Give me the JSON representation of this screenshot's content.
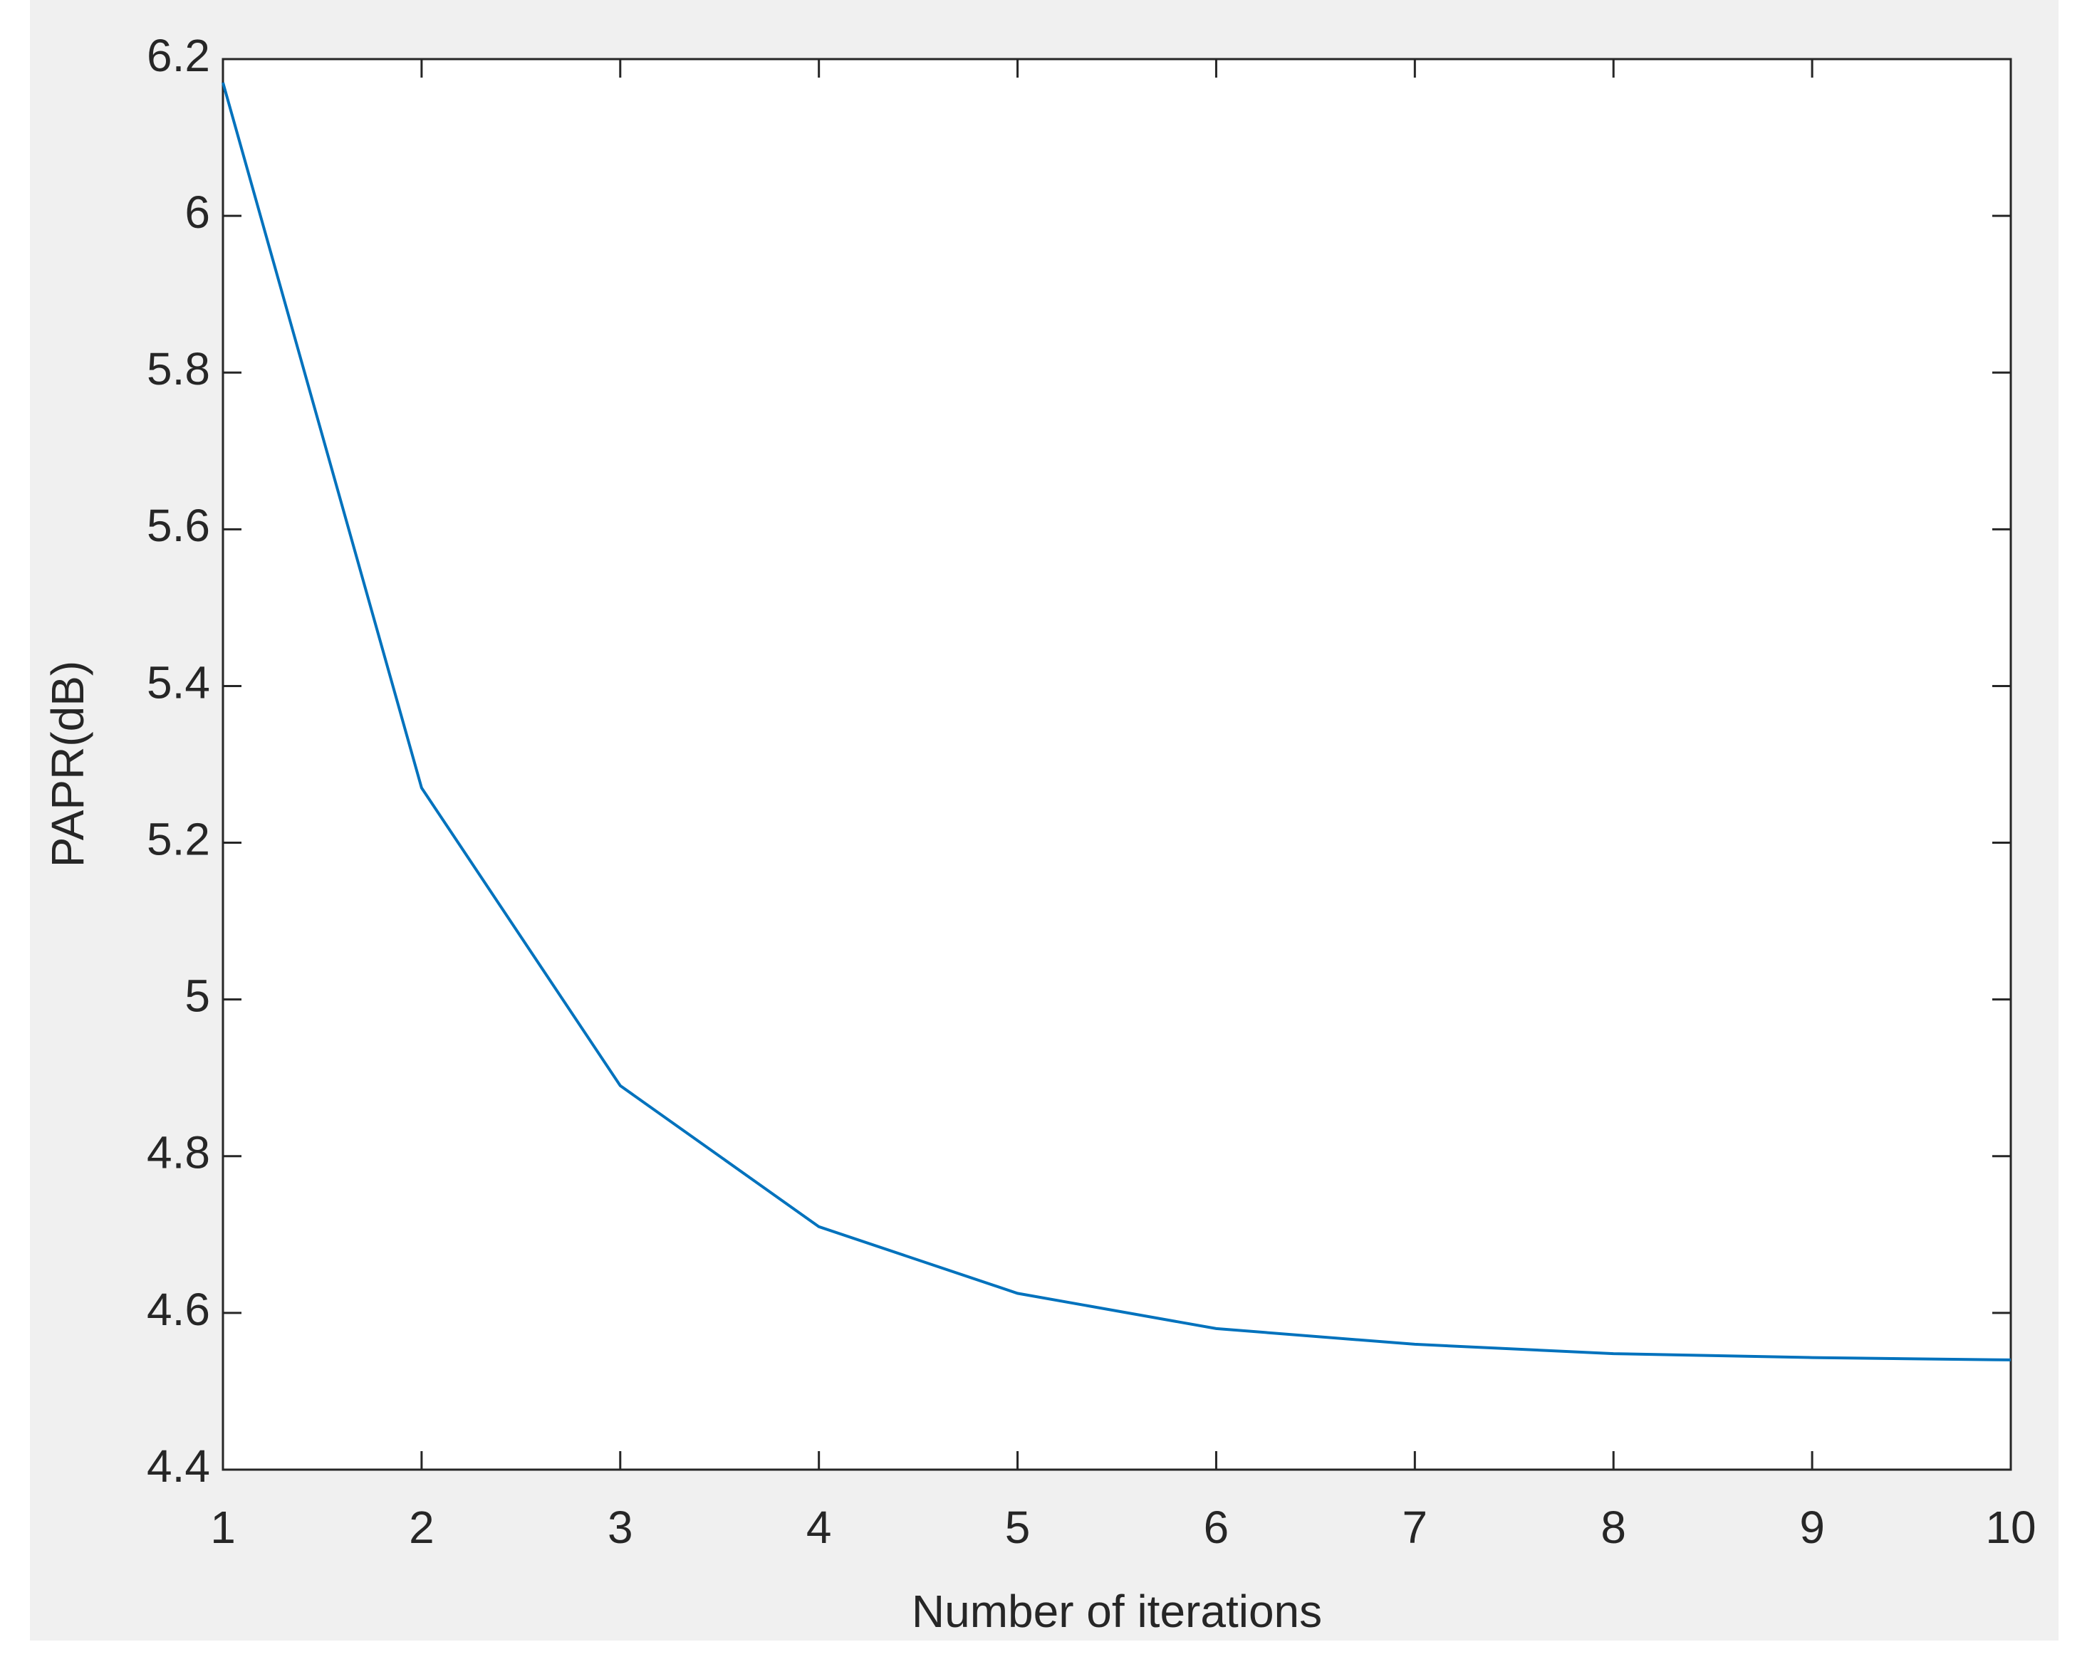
{
  "chart_data": {
    "type": "line",
    "x_label": "Number of iterations",
    "y_label": "PAPR(dB)",
    "x": [
      1,
      2,
      3,
      4,
      5,
      6,
      7,
      8,
      9,
      10
    ],
    "series": [
      {
        "name": "PAPR",
        "color": "#0072bd",
        "values": [
          6.17,
          5.27,
          4.89,
          4.71,
          4.625,
          4.58,
          4.56,
          4.548,
          4.543,
          4.54
        ]
      }
    ],
    "xlim": [
      1,
      10
    ],
    "xticks": [
      1,
      2,
      3,
      4,
      5,
      6,
      7,
      8,
      9,
      10
    ],
    "ylim": [
      4.4,
      6.2
    ],
    "yticks": [
      4.4,
      4.6,
      4.8,
      5,
      5.2,
      5.4,
      5.6,
      5.8,
      6,
      6.2
    ],
    "grid": false
  }
}
